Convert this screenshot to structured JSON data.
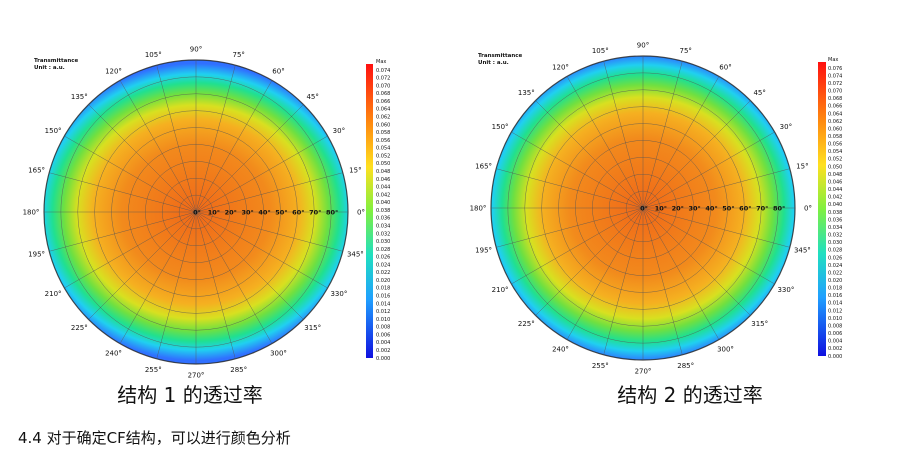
{
  "figures": [
    {
      "header": {
        "title": "Transmittance",
        "unit": "Unit : a.u."
      },
      "angle_labels": [
        "0°",
        "15°",
        "30°",
        "45°",
        "60°",
        "75°",
        "90°",
        "105°",
        "120°",
        "135°",
        "150°",
        "165°",
        "180°",
        "195°",
        "210°",
        "225°",
        "240°",
        "255°",
        "270°",
        "285°",
        "300°",
        "315°",
        "330°",
        "345°"
      ],
      "radial_labels": [
        "0°",
        "10°",
        "20°",
        "30°",
        "40°",
        "50°",
        "60°",
        "70°",
        "80°"
      ],
      "colorbar": {
        "title": "Max",
        "ticks": [
          "0.074",
          "0.072",
          "0.070",
          "0.068",
          "0.066",
          "0.064",
          "0.062",
          "0.060",
          "0.058",
          "0.056",
          "0.054",
          "0.052",
          "0.050",
          "0.048",
          "0.046",
          "0.044",
          "0.042",
          "0.040",
          "0.038",
          "0.036",
          "0.034",
          "0.032",
          "0.030",
          "0.028",
          "0.026",
          "0.024",
          "0.022",
          "0.020",
          "0.018",
          "0.016",
          "0.014",
          "0.012",
          "0.010",
          "0.008",
          "0.006",
          "0.004",
          "0.002",
          "0.000"
        ]
      },
      "caption": "结构 1 的透过率"
    },
    {
      "header": {
        "title": "Transmittance",
        "unit": "Unit : a.u."
      },
      "angle_labels": [
        "0°",
        "15°",
        "30°",
        "45°",
        "60°",
        "75°",
        "90°",
        "105°",
        "120°",
        "135°",
        "150°",
        "165°",
        "180°",
        "195°",
        "210°",
        "225°",
        "240°",
        "255°",
        "270°",
        "285°",
        "300°",
        "315°",
        "330°",
        "345°"
      ],
      "radial_labels": [
        "0°",
        "10°",
        "20°",
        "30°",
        "40°",
        "50°",
        "60°",
        "70°",
        "80°"
      ],
      "colorbar": {
        "title": "Max",
        "ticks": [
          "0.076",
          "0.074",
          "0.072",
          "0.070",
          "0.068",
          "0.066",
          "0.064",
          "0.062",
          "0.060",
          "0.058",
          "0.056",
          "0.054",
          "0.052",
          "0.050",
          "0.048",
          "0.046",
          "0.044",
          "0.042",
          "0.040",
          "0.038",
          "0.036",
          "0.034",
          "0.032",
          "0.030",
          "0.028",
          "0.026",
          "0.024",
          "0.022",
          "0.020",
          "0.018",
          "0.016",
          "0.014",
          "0.012",
          "0.010",
          "0.008",
          "0.006",
          "0.004",
          "0.002",
          "0.000"
        ]
      },
      "caption": "结构 2 的透过率"
    }
  ],
  "footer": "4.4 对于确定CF结构，可以进行颜色分析"
}
